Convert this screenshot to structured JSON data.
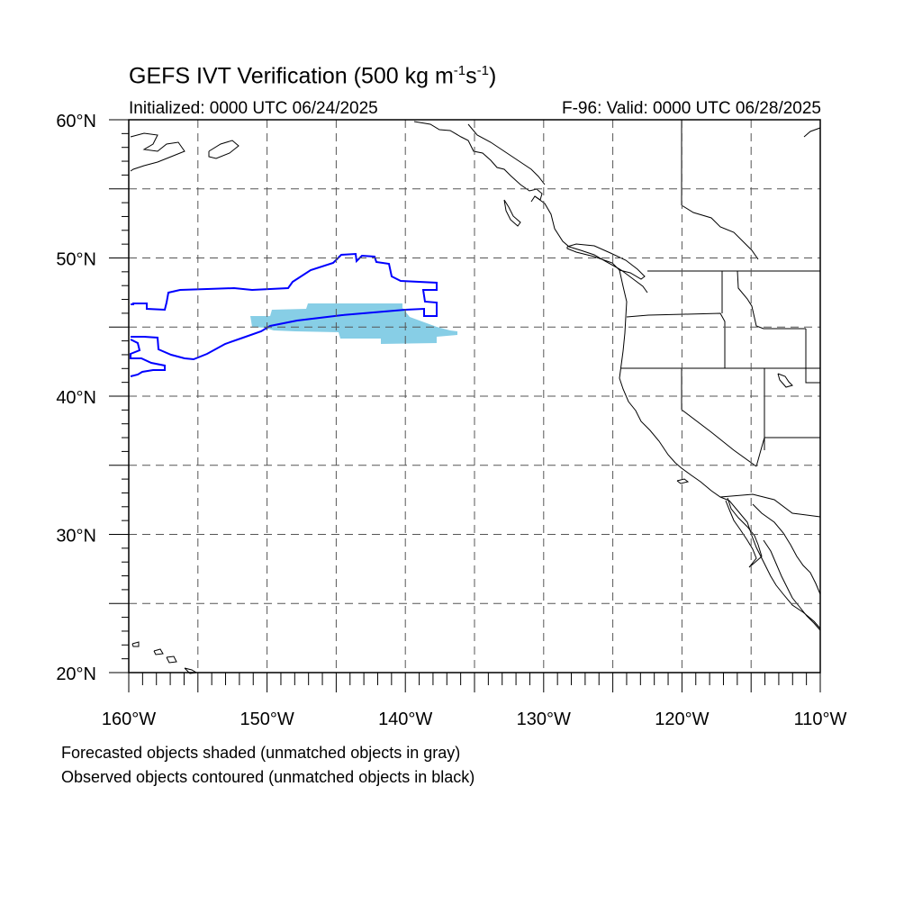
{
  "title": {
    "main": "GEFS IVT Verification (500 kg m",
    "exp1": "-1",
    "mid": "s",
    "exp2": "-1",
    "end": ")"
  },
  "initialized": "Initialized: 0000 UTC 06/24/2025",
  "valid": "F-96: Valid: 0000 UTC 06/28/2025",
  "map": {
    "lon_range": [
      -160,
      -110
    ],
    "lat_range": [
      20,
      60
    ],
    "lat_ticks": [
      "20°N",
      "30°N",
      "40°N",
      "50°N",
      "60°N"
    ],
    "lon_ticks": [
      "160°W",
      "150°W",
      "140°W",
      "130°W",
      "120°W",
      "110°W"
    ],
    "gridlines": "dashed every 5°",
    "forecast_object_color": "#87CEE6",
    "observed_contour_color": "#0000FF",
    "coastline_color": "#000000"
  },
  "notes": {
    "line1": "Forecasted objects shaded (unmatched objects in gray)",
    "line2": "Observed objects contoured (unmatched objects in black)"
  }
}
